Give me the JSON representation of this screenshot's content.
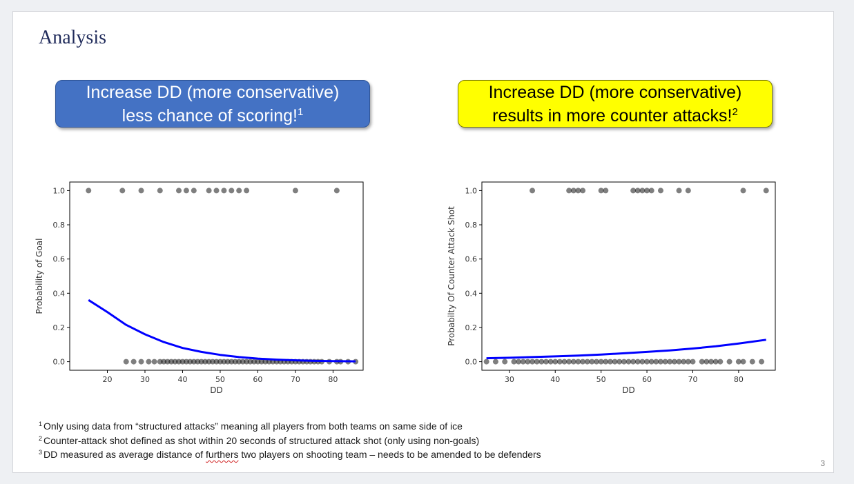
{
  "slide": {
    "title": "Analysis",
    "page_number": "3",
    "callouts": [
      {
        "line1": "Increase DD (more conservative)",
        "line2": "less chance of scoring!",
        "sup": "1",
        "color": "#4472c4"
      },
      {
        "line1": "Increase DD (more conservative)",
        "line2": "results in more counter attacks!",
        "sup": "2",
        "color": "#ffff00"
      }
    ],
    "footnotes": [
      {
        "sup": "1",
        "text": "Only using data from “structured attacks” meaning all players from both teams on same side of ice"
      },
      {
        "sup": "2",
        "text": "Counter-attack shot defined as shot within 20 seconds of structured attack shot (only using non-goals)"
      },
      {
        "sup": "3",
        "before": "DD measured as average distance of ",
        "flagged": "furthers",
        "after": " two players on shooting team – needs to be amended to be defenders"
      }
    ]
  },
  "chart_data": [
    {
      "type": "scatter",
      "xlabel": "DD",
      "ylabel": "Probability of Goal",
      "xlim": [
        10,
        88
      ],
      "ylim": [
        -0.05,
        1.05
      ],
      "xticks": [
        20,
        30,
        40,
        50,
        60,
        70,
        80
      ],
      "yticks": [
        0.0,
        0.2,
        0.4,
        0.6,
        0.8,
        1.0
      ],
      "point_color": "#000000",
      "line_color": "#0000ff",
      "points_y1": [
        15,
        24,
        29,
        34,
        39,
        41,
        43,
        47,
        49,
        51,
        53,
        55,
        57,
        70,
        81
      ],
      "points_y0": [
        25,
        27,
        29,
        31,
        32.5,
        34,
        35,
        36,
        37,
        38,
        39,
        40,
        41,
        42,
        43,
        44,
        45,
        46,
        47,
        48,
        49,
        50,
        51,
        52,
        53,
        54,
        55,
        56,
        57,
        58,
        59,
        60,
        61,
        62,
        63,
        64,
        65,
        66,
        67,
        68,
        69,
        70,
        71,
        72,
        73,
        74,
        75,
        76,
        77,
        79,
        81,
        82,
        84,
        86
      ],
      "fit_curve": {
        "x": [
          15,
          20,
          25,
          30,
          35,
          40,
          45,
          50,
          55,
          60,
          65,
          70,
          75,
          80,
          86
        ],
        "y": [
          0.36,
          0.29,
          0.215,
          0.16,
          0.115,
          0.08,
          0.057,
          0.04,
          0.027,
          0.018,
          0.012,
          0.008,
          0.005,
          0.003,
          0.002
        ]
      }
    },
    {
      "type": "scatter",
      "xlabel": "DD",
      "ylabel": "Probabilty Of Counter Attack Shot",
      "xlim": [
        24,
        88
      ],
      "ylim": [
        -0.05,
        1.05
      ],
      "xticks": [
        30,
        40,
        50,
        60,
        70,
        80
      ],
      "yticks": [
        0.0,
        0.2,
        0.4,
        0.6,
        0.8,
        1.0
      ],
      "point_color": "#000000",
      "line_color": "#0000ff",
      "points_y1": [
        35,
        43,
        44,
        45,
        46,
        50,
        51,
        57,
        58,
        59,
        60,
        61,
        63,
        67,
        69,
        81,
        86
      ],
      "points_y0": [
        25,
        27,
        29,
        31,
        32,
        33,
        34,
        35,
        36,
        37,
        38,
        39,
        40,
        41,
        42,
        43,
        44,
        45,
        46,
        47,
        48,
        49,
        50,
        51,
        52,
        53,
        54,
        55,
        56,
        57,
        58,
        59,
        60,
        61,
        62,
        63,
        64,
        65,
        66,
        67,
        68,
        69,
        70,
        72,
        73,
        74,
        75,
        76,
        78,
        80,
        81,
        83,
        85
      ],
      "fit_curve": {
        "x": [
          25,
          30,
          35,
          40,
          45,
          50,
          55,
          60,
          65,
          70,
          75,
          80,
          86
        ],
        "y": [
          0.02,
          0.023,
          0.027,
          0.031,
          0.036,
          0.042,
          0.049,
          0.057,
          0.066,
          0.077,
          0.09,
          0.106,
          0.128
        ]
      }
    }
  ]
}
